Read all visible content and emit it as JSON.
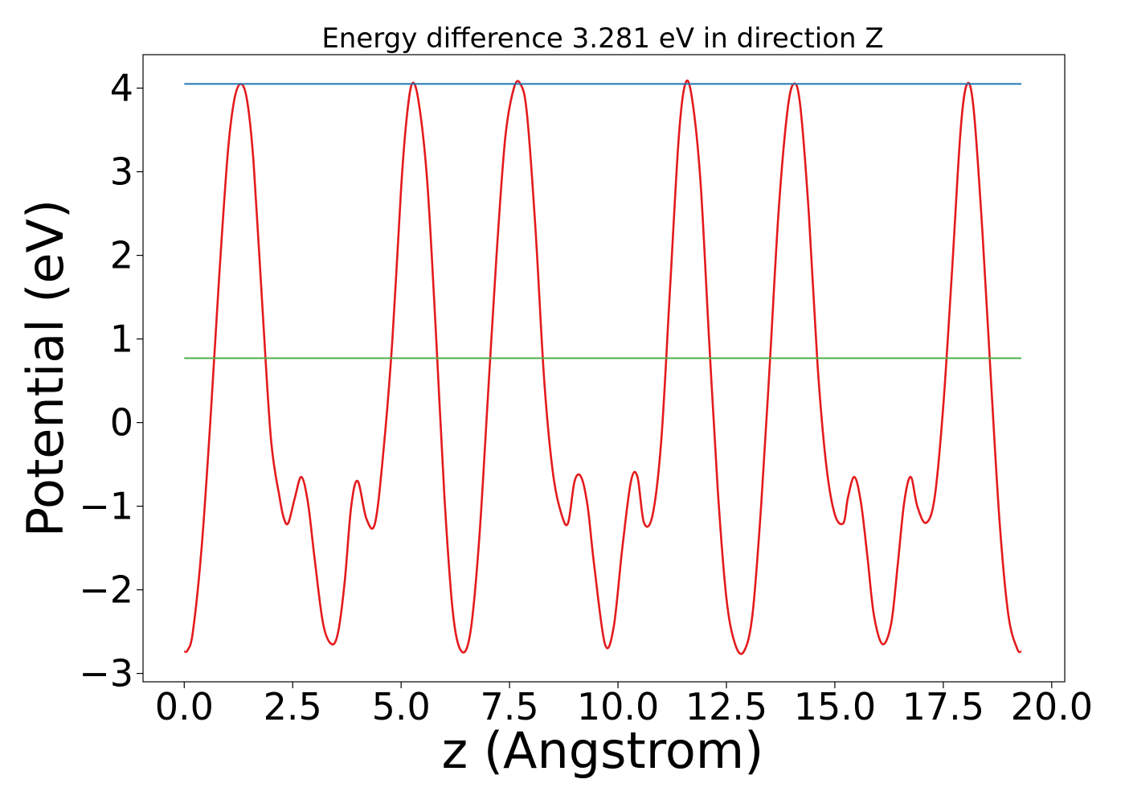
{
  "chart_data": {
    "type": "line",
    "title": "Energy difference 3.281 eV in direction Z",
    "xlabel": "z (Angstrom)",
    "ylabel": "Potential (eV)",
    "xlim": [
      -0.95,
      20.3
    ],
    "ylim": [
      -3.1,
      4.4
    ],
    "x_ticks": [
      0.0,
      2.5,
      5.0,
      7.5,
      10.0,
      12.5,
      15.0,
      17.5,
      20.0
    ],
    "x_tick_labels": [
      "0.0",
      "2.5",
      "5.0",
      "7.5",
      "10.0",
      "12.5",
      "15.0",
      "17.5",
      "20.0"
    ],
    "y_ticks": [
      -3,
      -2,
      -1,
      0,
      1,
      2,
      3,
      4
    ],
    "y_tick_labels": [
      "−3",
      "−2",
      "−1",
      "0",
      "1",
      "2",
      "3",
      "4"
    ],
    "grid": false,
    "series": [
      {
        "color": "#e41a1c",
        "x": [
          0.0,
          0.08,
          0.2,
          0.4,
          0.6,
          0.8,
          1.0,
          1.15,
          1.3,
          1.45,
          1.6,
          1.8,
          2.0,
          2.2,
          2.3,
          2.4,
          2.55,
          2.7,
          2.85,
          3.0,
          3.2,
          3.4,
          3.55,
          3.7,
          3.85,
          4.0,
          4.2,
          4.4,
          4.6,
          4.8,
          5.0,
          5.12,
          5.25,
          5.4,
          5.6,
          5.8,
          6.0,
          6.2,
          6.4,
          6.6,
          6.8,
          7.0,
          7.2,
          7.4,
          7.6,
          7.75,
          7.9,
          8.1,
          8.3,
          8.5,
          8.7,
          8.85,
          9.0,
          9.15,
          9.3,
          9.45,
          9.7,
          9.9,
          10.1,
          10.3,
          10.45,
          10.6,
          10.8,
          11.0,
          11.2,
          11.4,
          11.55,
          11.7,
          11.9,
          12.1,
          12.3,
          12.5,
          12.7,
          12.9,
          13.1,
          13.3,
          13.5,
          13.7,
          13.9,
          14.05,
          14.2,
          14.4,
          14.6,
          14.8,
          15.0,
          15.2,
          15.3,
          15.45,
          15.6,
          15.75,
          15.9,
          16.1,
          16.3,
          16.45,
          16.6,
          16.75,
          16.9,
          17.1,
          17.3,
          17.5,
          17.7,
          17.9,
          18.05,
          18.2,
          18.4,
          18.6,
          18.8,
          19.0,
          19.2,
          19.3
        ],
        "y": [
          -2.74,
          -2.72,
          -2.5,
          -1.5,
          0.0,
          1.7,
          3.2,
          3.85,
          4.05,
          3.85,
          3.1,
          1.4,
          -0.2,
          -0.9,
          -1.15,
          -1.2,
          -0.9,
          -0.65,
          -0.95,
          -1.6,
          -2.4,
          -2.65,
          -2.5,
          -1.9,
          -1.0,
          -0.7,
          -1.15,
          -1.2,
          -0.3,
          1.0,
          2.8,
          3.6,
          4.05,
          3.85,
          2.9,
          1.1,
          -0.9,
          -2.3,
          -2.74,
          -2.5,
          -1.4,
          0.3,
          2.0,
          3.4,
          4.0,
          4.05,
          3.7,
          2.3,
          0.5,
          -0.6,
          -1.1,
          -1.2,
          -0.7,
          -0.65,
          -1.0,
          -1.7,
          -2.65,
          -2.45,
          -1.5,
          -0.7,
          -0.65,
          -1.2,
          -1.1,
          -0.2,
          1.6,
          3.4,
          4.05,
          3.9,
          2.9,
          1.0,
          -0.8,
          -2.1,
          -2.65,
          -2.74,
          -2.3,
          -1.0,
          0.7,
          2.5,
          3.7,
          4.05,
          3.8,
          2.5,
          0.7,
          -0.5,
          -1.1,
          -1.2,
          -0.9,
          -0.65,
          -0.95,
          -1.6,
          -2.3,
          -2.65,
          -2.4,
          -1.7,
          -0.95,
          -0.65,
          -1.0,
          -1.2,
          -0.9,
          0.2,
          1.8,
          3.5,
          4.05,
          3.75,
          2.3,
          0.5,
          -1.2,
          -2.3,
          -2.7,
          -2.74
        ]
      },
      {
        "color": "#1f77b4",
        "x": [
          0.0,
          19.3
        ],
        "y": [
          4.05,
          4.05
        ]
      },
      {
        "color": "#4daf4a",
        "x": [
          0.0,
          19.3
        ],
        "y": [
          0.77,
          0.77
        ]
      }
    ]
  }
}
